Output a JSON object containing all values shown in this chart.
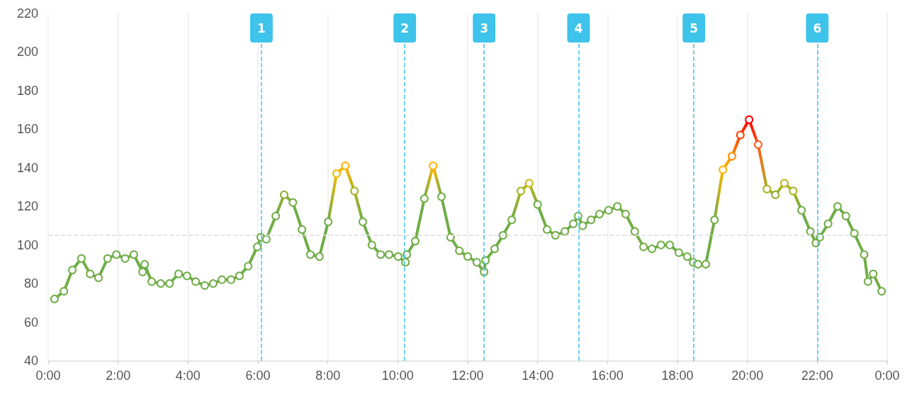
{
  "chart_data": {
    "type": "line",
    "x": [
      0.18,
      0.45,
      0.69,
      0.95,
      1.2,
      1.44,
      1.7,
      1.95,
      2.2,
      2.45,
      2.7,
      2.76,
      2.96,
      3.22,
      3.47,
      3.73,
      3.97,
      4.22,
      4.48,
      4.72,
      4.97,
      5.23,
      5.47,
      5.72,
      5.98,
      6.08,
      6.24,
      6.51,
      6.75,
      7.0,
      7.26,
      7.5,
      7.76,
      8.01,
      8.25,
      8.5,
      8.76,
      9.0,
      9.26,
      9.51,
      9.75,
      10.01,
      10.22,
      10.26,
      10.5,
      10.76,
      11.01,
      11.25,
      11.51,
      11.76,
      12.0,
      12.26,
      12.47,
      12.51,
      12.77,
      13.01,
      13.26,
      13.52,
      13.76,
      14.0,
      14.27,
      14.51,
      14.78,
      15.02,
      15.16,
      15.29,
      15.53,
      15.77,
      16.03,
      16.28,
      16.52,
      16.78,
      17.03,
      17.27,
      17.53,
      17.78,
      18.04,
      18.28,
      18.45,
      18.59,
      18.81,
      19.06,
      19.3,
      19.56,
      19.8,
      20.05,
      20.31,
      20.56,
      20.8,
      21.06,
      21.31,
      21.55,
      21.8,
      21.96,
      22.07,
      22.31,
      22.58,
      22.82,
      23.06,
      23.34,
      23.45,
      23.6,
      23.84
    ],
    "values": [
      72,
      76,
      87,
      93,
      85,
      83,
      93,
      95,
      93,
      95,
      86,
      90,
      81,
      80,
      80,
      85,
      84,
      81,
      79,
      80,
      82,
      82,
      84,
      89,
      99,
      104,
      103,
      115,
      126,
      122,
      108,
      95,
      94,
      112,
      137,
      141,
      128,
      112,
      100,
      95,
      95,
      94,
      91,
      95,
      102,
      124,
      141,
      125,
      104,
      97,
      94,
      91,
      86,
      92,
      98,
      105,
      113,
      128,
      132,
      121,
      108,
      105,
      107,
      111,
      115,
      110,
      113,
      116,
      118,
      120,
      116,
      107,
      99,
      98,
      100,
      100,
      96,
      94,
      91,
      90,
      90,
      113,
      139,
      146,
      157,
      165,
      152,
      129,
      126,
      132,
      128,
      118,
      107,
      101,
      104,
      111,
      120,
      115,
      106,
      95,
      81,
      85,
      76
    ],
    "colors": [
      "#70ad47",
      "#70ad47",
      "#70ad47",
      "#70ad47",
      "#70ad47",
      "#70ad47",
      "#70ad47",
      "#70ad47",
      "#70ad47",
      "#70ad47",
      "#70ad47",
      "#70ad47",
      "#70ad47",
      "#70ad47",
      "#70ad47",
      "#70ad47",
      "#70ad47",
      "#70ad47",
      "#70ad47",
      "#70ad47",
      "#70ad47",
      "#70ad47",
      "#70ad47",
      "#70ad47",
      "#70ad47",
      "#70ad47",
      "#70ad47",
      "#70ad47",
      "#8fb033",
      "#70ad47",
      "#70ad47",
      "#70ad47",
      "#70ad47",
      "#70ad47",
      "#f0b800",
      "#ffb400",
      "#a8b423",
      "#70ad47",
      "#70ad47",
      "#70ad47",
      "#70ad47",
      "#70ad47",
      "#70ad47",
      "#70ad47",
      "#70ad47",
      "#70ad47",
      "#ffb400",
      "#70ad47",
      "#70ad47",
      "#70ad47",
      "#70ad47",
      "#70ad47",
      "#70ad47",
      "#70ad47",
      "#70ad47",
      "#70ad47",
      "#70ad47",
      "#a8b423",
      "#c8b818",
      "#70ad47",
      "#70ad47",
      "#70ad47",
      "#70ad47",
      "#70ad47",
      "#70ad47",
      "#70ad47",
      "#70ad47",
      "#70ad47",
      "#70ad47",
      "#70ad47",
      "#70ad47",
      "#70ad47",
      "#70ad47",
      "#70ad47",
      "#70ad47",
      "#70ad47",
      "#70ad47",
      "#70ad47",
      "#70ad47",
      "#70ad47",
      "#70ad47",
      "#70ad47",
      "#ffb400",
      "#ff8c00",
      "#ff3c00",
      "#ff0000",
      "#ff5a1e",
      "#a8b423",
      "#8fb033",
      "#b8b81c",
      "#a8b423",
      "#70ad47",
      "#70ad47",
      "#70ad47",
      "#70ad47",
      "#70ad47",
      "#70ad47",
      "#70ad47",
      "#70ad47",
      "#70ad47",
      "#70ad47",
      "#70ad47",
      "#70ad47"
    ],
    "xlim": [
      0,
      24
    ],
    "xticks": [
      {
        "value": 0,
        "label": "0:00"
      },
      {
        "value": 2,
        "label": "2:00"
      },
      {
        "value": 4,
        "label": "4:00"
      },
      {
        "value": 6,
        "label": "6:00"
      },
      {
        "value": 8,
        "label": "8:00"
      },
      {
        "value": 10,
        "label": "10:00"
      },
      {
        "value": 12,
        "label": "12:00"
      },
      {
        "value": 14,
        "label": "14:00"
      },
      {
        "value": 16,
        "label": "16:00"
      },
      {
        "value": 18,
        "label": "18:00"
      },
      {
        "value": 20,
        "label": "20:00"
      },
      {
        "value": 22,
        "label": "22:00"
      },
      {
        "value": 24,
        "label": "0:00"
      }
    ],
    "ylim": [
      40,
      220
    ],
    "yticks": [
      40,
      60,
      80,
      100,
      120,
      140,
      160,
      180,
      200,
      220
    ],
    "grid": "x",
    "marker": "circle",
    "line_style": "solid",
    "ref_lines": [
      {
        "axis": "y",
        "value": 105,
        "color": "#dddddd",
        "line_style": "dashed"
      },
      {
        "axis": "x",
        "value": 6.1,
        "color": "#3ec3ea",
        "line_style": "dashed"
      },
      {
        "axis": "x",
        "value": 10.2,
        "color": "#3ec3ea",
        "line_style": "dashed"
      },
      {
        "axis": "x",
        "value": 12.47,
        "color": "#3ec3ea",
        "line_style": "dashed"
      },
      {
        "axis": "x",
        "value": 15.17,
        "color": "#3ec3ea",
        "line_style": "dashed"
      },
      {
        "axis": "x",
        "value": 18.47,
        "color": "#3ec3ea",
        "line_style": "dashed"
      },
      {
        "axis": "x",
        "value": 22.0,
        "color": "#3ec3ea",
        "line_style": "dashed"
      }
    ],
    "annotations": [
      {
        "text": "1",
        "x": 6.1
      },
      {
        "text": "2",
        "x": 10.2
      },
      {
        "text": "3",
        "x": 12.47
      },
      {
        "text": "4",
        "x": 15.17
      },
      {
        "text": "5",
        "x": 18.47
      },
      {
        "text": "6",
        "x": 22.0
      }
    ]
  }
}
